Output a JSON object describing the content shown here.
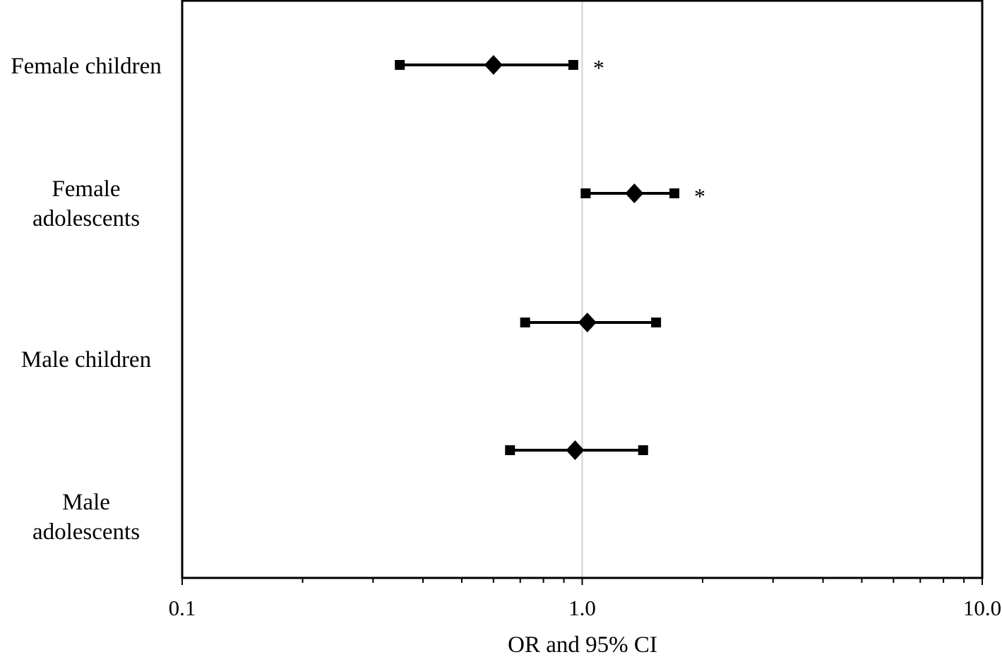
{
  "chart_data": {
    "type": "forest",
    "x_scale": "log",
    "xlim": [
      0.1,
      10.0
    ],
    "xlabel": "OR and 95% CI",
    "xtick_labels": [
      "0.1",
      "1.0",
      "10.0"
    ],
    "xticks": [
      0.1,
      1.0,
      10.0
    ],
    "reference_line": 1.0,
    "grid": false,
    "categories": [
      {
        "label": "Female children",
        "or": 0.6,
        "ci_low": 0.35,
        "ci_high": 0.95,
        "significant": true,
        "sig_mark": "*"
      },
      {
        "label": "Female\nadolescents",
        "or": 1.35,
        "ci_low": 1.02,
        "ci_high": 1.7,
        "significant": true,
        "sig_mark": "*"
      },
      {
        "label": "Male children",
        "or": 1.03,
        "ci_low": 0.72,
        "ci_high": 1.53,
        "significant": false,
        "sig_mark": ""
      },
      {
        "label": "Male\nadolescents",
        "or": 0.96,
        "ci_low": 0.66,
        "ci_high": 1.42,
        "significant": false,
        "sig_mark": ""
      }
    ],
    "colors": {
      "marker": "#000000",
      "frame": "#000000",
      "reference_line": "#d0d0d0"
    }
  }
}
